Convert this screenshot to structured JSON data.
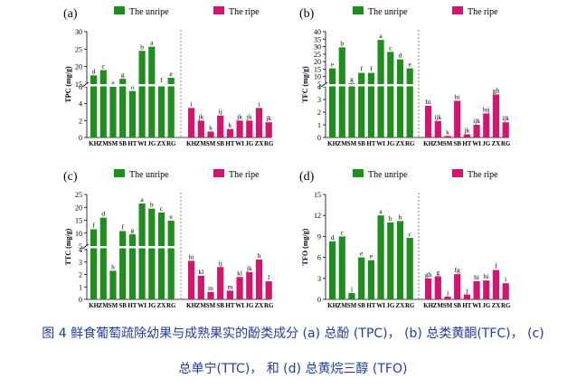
{
  "caption": {
    "line1": "图 4  鲜食葡萄疏除幼果与成熟果实的酚类成分  (a) 总酚  (TPC)，  (b) 总类黄酮(TFC)，  (c)",
    "line2": "总单宁(TTC)，   和  (d) 总黄烷三醇  (TFO)"
  },
  "colors": {
    "unripe": "#1f8e1f",
    "ripe": "#d0166f",
    "divider": "#666666"
  },
  "chart_data": [
    {
      "type": "bar",
      "panel": "(a)",
      "ylabel": "TPC (mg/g)",
      "categories": [
        "KH",
        "ZM",
        "SM",
        "SB",
        "HT",
        "WI",
        "JG",
        "ZX",
        "RG"
      ],
      "axis_break": {
        "lower": [
          0,
          6
        ],
        "upper": [
          15,
          30
        ]
      },
      "lower_ticks": [
        0,
        2,
        4,
        6
      ],
      "upper_ticks": [
        15,
        20,
        25,
        30
      ],
      "legend": [
        "The unripe",
        "The ripe"
      ],
      "series": [
        {
          "name": "The unripe",
          "values": [
            17.5,
            19,
            6.0,
            16.5,
            5.5,
            24.5,
            25.7,
            15,
            16.8
          ],
          "labels": [
            "d",
            "c",
            "g",
            "g",
            "h",
            "b",
            "a",
            "f",
            "e"
          ]
        },
        {
          "name": "The ripe",
          "values": [
            3.5,
            2.0,
            0.7,
            2.6,
            1.0,
            2.0,
            2.0,
            3.5,
            1.8
          ],
          "labels": [
            "i",
            "jk",
            "k",
            "ij",
            "k",
            "jk",
            "jk",
            "i",
            "jk"
          ]
        }
      ]
    },
    {
      "type": "bar",
      "panel": "(b)",
      "ylabel": "TFC (mg/g)",
      "categories": [
        "KH",
        "ZM",
        "SM",
        "SB",
        "HT",
        "WI",
        "JG",
        "ZX",
        "RG"
      ],
      "axis_break": {
        "lower": [
          0,
          4
        ],
        "upper": [
          5,
          40
        ]
      },
      "lower_ticks": [
        0,
        1,
        2,
        3,
        4
      ],
      "upper_ticks": [
        5,
        10,
        15,
        20,
        25,
        30,
        35,
        40
      ],
      "legend": [
        "The unripe",
        "The ripe"
      ],
      "series": [
        {
          "name": "The unripe",
          "values": [
            15.5,
            29.5,
            5.5,
            12.5,
            12.5,
            34.5,
            26.5,
            21.5,
            15.5
          ],
          "labels": [
            "e",
            "b",
            "g",
            "f",
            "f",
            "a",
            "c",
            "d",
            "e"
          ]
        },
        {
          "name": "The ripe",
          "values": [
            2.5,
            1.3,
            0.12,
            2.9,
            0.25,
            1.0,
            1.9,
            3.4,
            1.2
          ],
          "labels": [
            "hi",
            "ijk",
            "k",
            "hi",
            "jk",
            "ijk",
            "hij",
            "gh",
            "ijk"
          ]
        }
      ]
    },
    {
      "type": "bar",
      "panel": "(c)",
      "ylabel": "TTC (mg/g)",
      "categories": [
        "KH",
        "ZM",
        "SM",
        "SB",
        "HT",
        "WI",
        "JG",
        "ZX",
        "RG"
      ],
      "axis_break": {
        "lower": [
          0,
          4
        ],
        "upper": [
          5,
          25
        ]
      },
      "lower_ticks": [
        0,
        1,
        2,
        3,
        4
      ],
      "upper_ticks": [
        5,
        10,
        15,
        20,
        25
      ],
      "legend": [
        "The unripe",
        "The ripe"
      ],
      "series": [
        {
          "name": "The unripe",
          "values": [
            11.5,
            16.0,
            2.3,
            10.8,
            9.5,
            21.5,
            19.5,
            18.0,
            14.8
          ],
          "labels": [
            "f",
            "d",
            "h",
            "f",
            "g",
            "a",
            "b",
            "c",
            "e"
          ]
        },
        {
          "name": "The ripe",
          "values": [
            3.1,
            1.9,
            0.6,
            2.6,
            0.7,
            1.8,
            2.2,
            3.2,
            1.45
          ],
          "labels": [
            "hi",
            "kl",
            "m",
            "ij",
            "m",
            "kl",
            "jk",
            "h",
            "l"
          ]
        }
      ]
    },
    {
      "type": "bar",
      "panel": "(d)",
      "ylabel": "TFO (mg/g)",
      "categories": [
        "KH",
        "ZM",
        "SM",
        "SB",
        "HT",
        "WI",
        "JG",
        "ZX",
        "RG"
      ],
      "axis_break": {
        "lower": [
          0,
          8
        ],
        "upper": [
          8,
          15
        ]
      },
      "lower_ticks": [
        0,
        3,
        6,
        9,
        12,
        15
      ],
      "upper_ticks": [],
      "legend": [
        "The unripe",
        "The ripe"
      ],
      "series": [
        {
          "name": "The unripe",
          "values": [
            8.3,
            9.0,
            0.9,
            6.0,
            5.6,
            12.0,
            11.0,
            11.2,
            8.8
          ],
          "labels": [
            "d",
            "c",
            "j",
            "e",
            "e",
            "a",
            "b",
            "b",
            "c"
          ]
        },
        {
          "name": "The ripe",
          "values": [
            3.0,
            3.3,
            0.4,
            3.6,
            0.7,
            2.6,
            2.7,
            4.2,
            2.3
          ],
          "labels": [
            "gh",
            "g",
            "j",
            "fg",
            "j",
            "hi",
            "hi",
            "f",
            "i"
          ]
        }
      ]
    }
  ]
}
